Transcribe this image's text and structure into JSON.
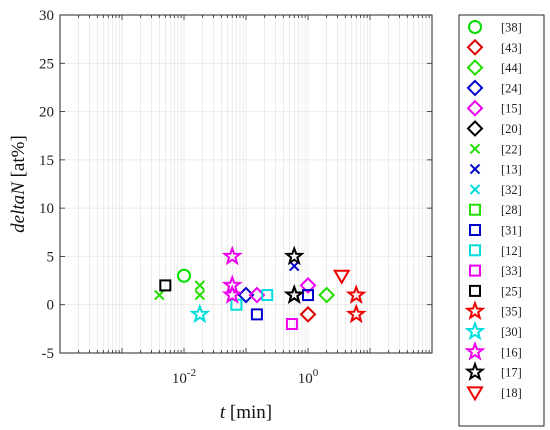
{
  "chart_data": {
    "type": "scatter",
    "xscale": "log",
    "xlim": [
      0.0001,
      100
    ],
    "ylim": [
      -5,
      30
    ],
    "xticks": [
      {
        "value": 0.01,
        "base": "10",
        "exp": "-2"
      },
      {
        "value": 1,
        "base": "10",
        "exp": "0"
      }
    ],
    "yticks": [
      -5,
      0,
      5,
      10,
      15,
      20,
      25,
      30
    ],
    "xlabel": {
      "var": "t",
      "unit": " [min]"
    },
    "ylabel": {
      "var": "deltaN",
      "unit": " [at%]"
    },
    "grid": true,
    "legend_position": "right-outside",
    "series": [
      {
        "name": "[38]",
        "marker": "circle",
        "color": "#00dd00",
        "points": [
          {
            "x": 0.01,
            "y": 3
          }
        ]
      },
      {
        "name": "[43]",
        "marker": "diamond",
        "color": "#dd0000",
        "points": [
          {
            "x": 1.0,
            "y": -1
          }
        ]
      },
      {
        "name": "[44]",
        "marker": "diamond",
        "color": "#22dd00",
        "points": [
          {
            "x": 2.0,
            "y": 1
          }
        ]
      },
      {
        "name": "[24]",
        "marker": "diamond",
        "color": "#0000cc",
        "points": [
          {
            "x": 0.1,
            "y": 1
          }
        ]
      },
      {
        "name": "[15]",
        "marker": "diamond",
        "color": "#ee00ee",
        "points": [
          {
            "x": 0.15,
            "y": 1
          },
          {
            "x": 1.0,
            "y": 2
          }
        ]
      },
      {
        "name": "[20]",
        "marker": "diamond",
        "color": "#000000",
        "points": []
      },
      {
        "name": "[22]",
        "marker": "x",
        "color": "#22dd00",
        "points": [
          {
            "x": 0.004,
            "y": 1
          },
          {
            "x": 0.018,
            "y": 2
          },
          {
            "x": 0.018,
            "y": 1
          }
        ]
      },
      {
        "name": "[13]",
        "marker": "x",
        "color": "#0000cc",
        "points": [
          {
            "x": 0.6,
            "y": 4
          }
        ]
      },
      {
        "name": "[32]",
        "marker": "x",
        "color": "#00dddd",
        "points": []
      },
      {
        "name": "[28]",
        "marker": "square",
        "color": "#22dd00",
        "points": []
      },
      {
        "name": "[31]",
        "marker": "square",
        "color": "#0000cc",
        "points": [
          {
            "x": 0.15,
            "y": -1
          },
          {
            "x": 1.0,
            "y": 1
          }
        ]
      },
      {
        "name": "[12]",
        "marker": "square",
        "color": "#00dddd",
        "points": [
          {
            "x": 0.07,
            "y": 0
          },
          {
            "x": 0.22,
            "y": 1
          }
        ]
      },
      {
        "name": "[33]",
        "marker": "square",
        "color": "#ee00ee",
        "points": [
          {
            "x": 0.55,
            "y": -2
          }
        ]
      },
      {
        "name": "[25]",
        "marker": "square",
        "color": "#000000",
        "points": [
          {
            "x": 0.005,
            "y": 2
          }
        ]
      },
      {
        "name": "[35]",
        "marker": "star",
        "color": "#ee0000",
        "points": [
          {
            "x": 6.0,
            "y": 1
          },
          {
            "x": 6.0,
            "y": -1
          }
        ]
      },
      {
        "name": "[30]",
        "marker": "star",
        "color": "#00dddd",
        "points": [
          {
            "x": 0.018,
            "y": -1
          }
        ]
      },
      {
        "name": "[16]",
        "marker": "star",
        "color": "#ee00ee",
        "points": [
          {
            "x": 0.06,
            "y": 5
          },
          {
            "x": 0.06,
            "y": 2
          },
          {
            "x": 0.06,
            "y": 1
          }
        ]
      },
      {
        "name": "[17]",
        "marker": "star",
        "color": "#000000",
        "points": [
          {
            "x": 0.6,
            "y": 5
          },
          {
            "x": 0.6,
            "y": 1
          },
          {
            "x": 0.6,
            "y": 1
          }
        ]
      },
      {
        "name": "[18]",
        "marker": "triangle-down",
        "color": "#ee0000",
        "points": [
          {
            "x": 3.5,
            "y": 3
          }
        ]
      }
    ]
  }
}
